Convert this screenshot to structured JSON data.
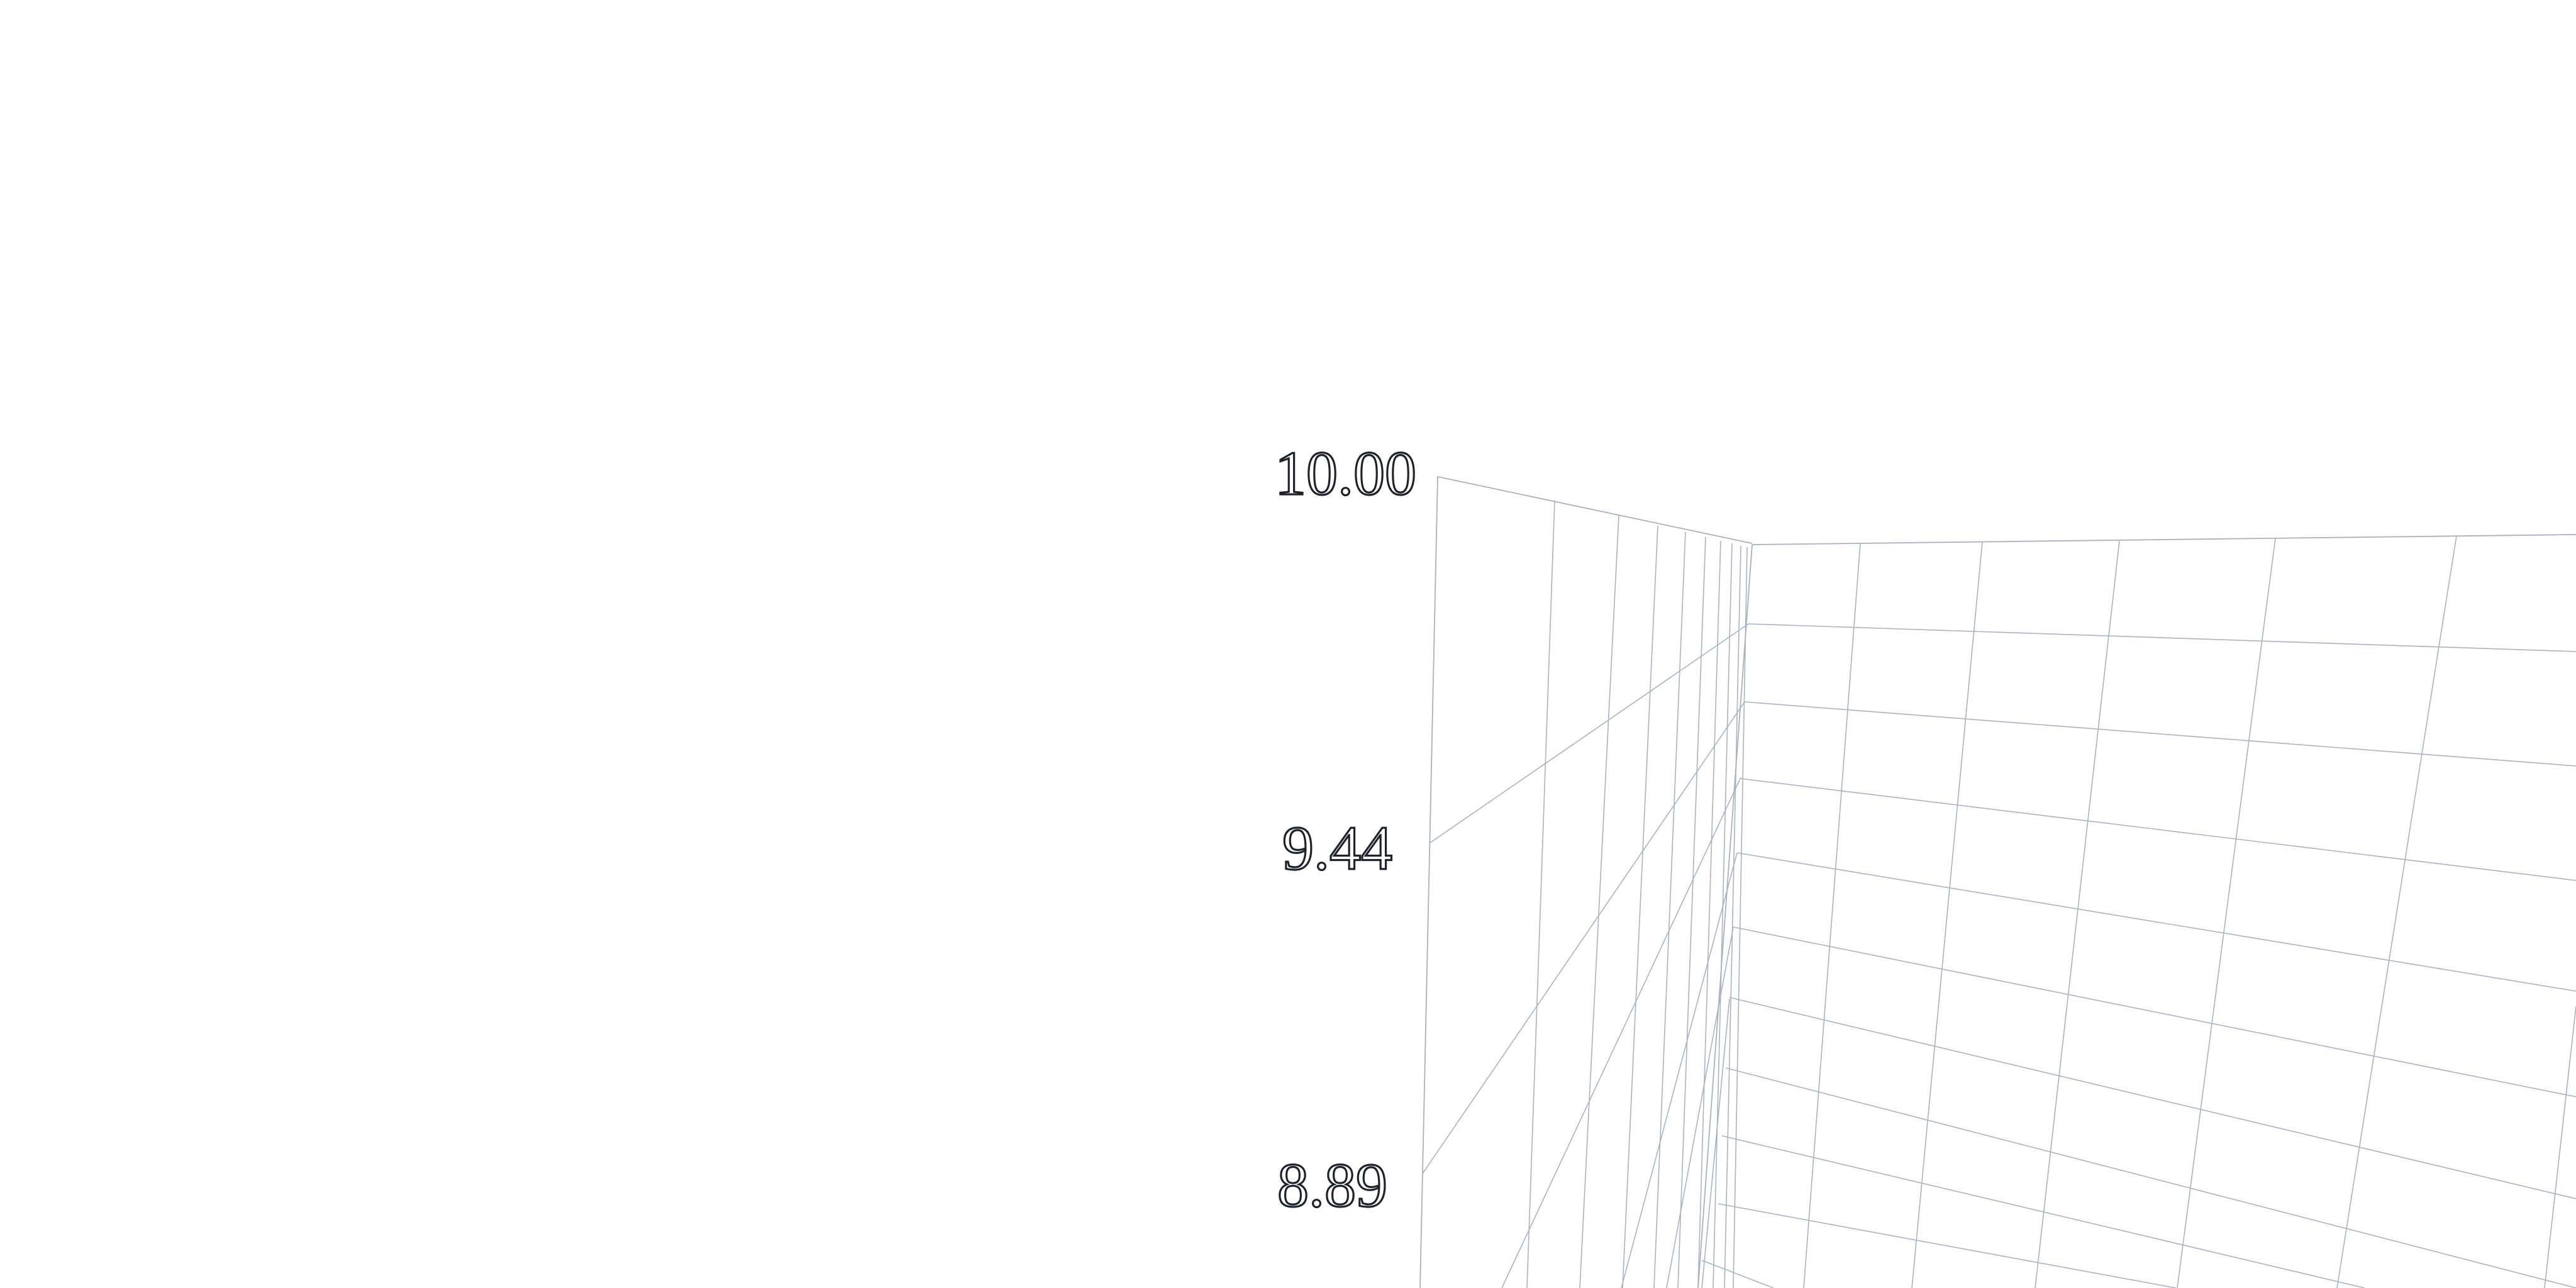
{
  "chart_data": {
    "type": "surface",
    "title": "",
    "xlabel": "",
    "ylabel": "",
    "zlabel": "",
    "z_tick_labels": [
      "10.00",
      "9.44",
      "8.89"
    ],
    "zlim": [
      8.89,
      10.0
    ],
    "grid": true,
    "colors": {
      "grid": "#aab3c1",
      "tick_label_outline": "#1e232b",
      "tick_label_fill": "#ffffff",
      "background": "#ffffff"
    }
  }
}
